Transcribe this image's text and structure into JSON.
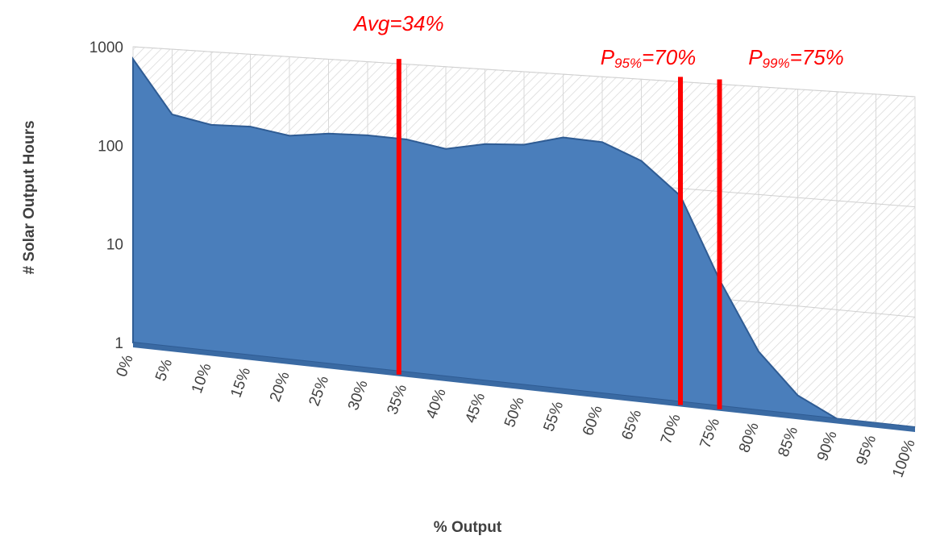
{
  "chart_data": {
    "type": "area",
    "x_label": "% Output",
    "y_label": "# Solar Output Hours",
    "categories": [
      "0%",
      "5%",
      "10%",
      "15%",
      "20%",
      "25%",
      "30%",
      "35%",
      "40%",
      "45%",
      "50%",
      "55%",
      "60%",
      "65%",
      "70%",
      "75%",
      "80%",
      "85%",
      "90%",
      "95%",
      "100%"
    ],
    "values": [
      750,
      220,
      185,
      190,
      165,
      185,
      190,
      185,
      160,
      190,
      200,
      250,
      240,
      170,
      85,
      15,
      3.5,
      1.5,
      1,
      1,
      1
    ],
    "color": "#4a7ebb",
    "log_scale": true,
    "grid": true,
    "ylim": [
      1,
      1000
    ],
    "yticks": [
      1,
      10,
      100,
      1000
    ],
    "annotations": [
      {
        "label": "Avg=34%",
        "x": 34
      },
      {
        "prefix": "P",
        "sub": "95%",
        "label": "=70%",
        "x": 70
      },
      {
        "prefix": "P",
        "sub": "99%",
        "label": "=75%",
        "x": 75
      }
    ]
  }
}
